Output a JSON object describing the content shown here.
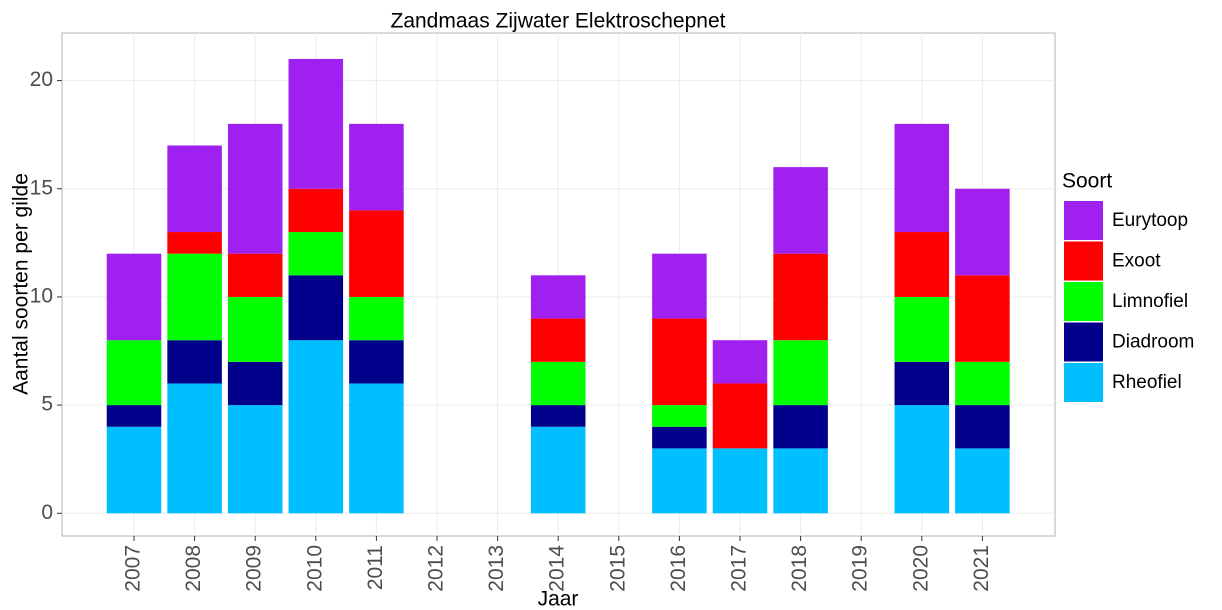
{
  "chart_data": {
    "type": "stacked_bar",
    "title": "Zandmaas Zijwater Elektroschepnet",
    "x_label": "Jaar",
    "y_label": "Aantal soorten per gilde",
    "legend_title": "Soort",
    "categories": [
      "2007",
      "2008",
      "2009",
      "2010",
      "2011",
      "2012",
      "2013",
      "2014",
      "2015",
      "2016",
      "2017",
      "2018",
      "2019",
      "2020",
      "2021"
    ],
    "series": [
      {
        "name": "Rheofiel",
        "color": "#00bfff",
        "values": [
          4,
          6,
          5,
          8,
          6,
          null,
          null,
          4,
          null,
          3,
          3,
          3,
          null,
          5,
          3
        ]
      },
      {
        "name": "Diadroom",
        "color": "#00008b",
        "values": [
          1,
          2,
          2,
          3,
          2,
          null,
          null,
          1,
          null,
          1,
          0,
          2,
          null,
          2,
          2
        ]
      },
      {
        "name": "Limnofiel",
        "color": "#00ff00",
        "values": [
          3,
          4,
          3,
          2,
          2,
          null,
          null,
          2,
          null,
          1,
          0,
          3,
          null,
          3,
          2
        ]
      },
      {
        "name": "Exoot",
        "color": "#ff0000",
        "values": [
          0,
          1,
          2,
          2,
          4,
          null,
          null,
          2,
          null,
          4,
          3,
          4,
          null,
          3,
          4
        ]
      },
      {
        "name": "Eurytoop",
        "color": "#a020f0",
        "values": [
          4,
          4,
          6,
          6,
          4,
          null,
          null,
          2,
          null,
          3,
          2,
          4,
          null,
          5,
          4
        ]
      }
    ],
    "ylim": [
      -1.05,
      22.2
    ],
    "yticks": [
      0,
      5,
      10,
      15,
      20
    ],
    "grid": true,
    "legend": "right"
  }
}
